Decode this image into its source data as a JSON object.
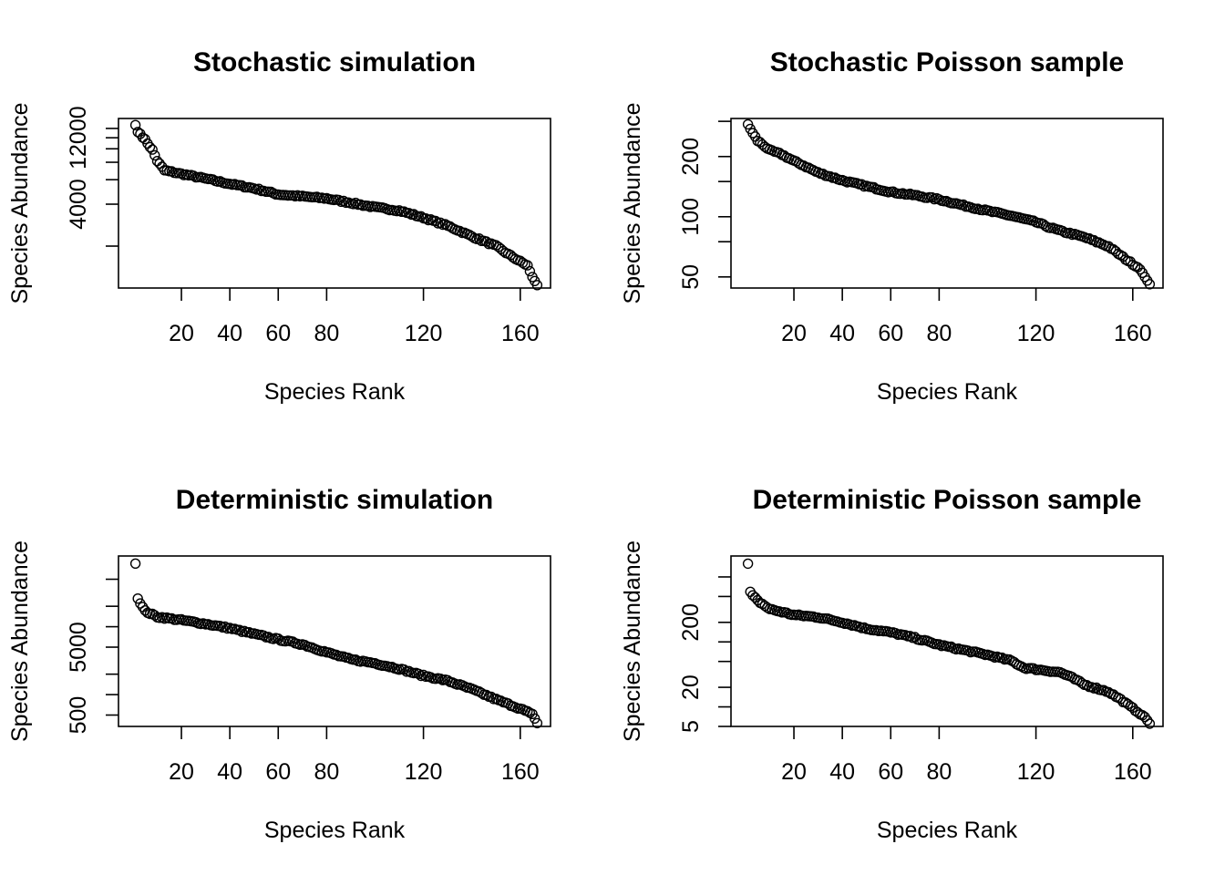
{
  "chart_data": [
    {
      "type": "scatter",
      "title": "Stochastic simulation",
      "xlabel": "Species Rank",
      "ylabel": "Species Abundance",
      "log_y": true,
      "xticks": [
        20,
        40,
        60,
        80,
        120,
        160
      ],
      "yticks": [
        2000,
        4000,
        6000,
        8000,
        10000,
        12000,
        14000
      ],
      "yticklabels": [
        "",
        "4000",
        "",
        "",
        "",
        "12000",
        ""
      ],
      "curve": [
        [
          1,
          14800
        ],
        [
          2,
          13200
        ],
        [
          3,
          12800
        ],
        [
          5,
          11600
        ],
        [
          8,
          9800
        ],
        [
          10,
          8200
        ],
        [
          13,
          7000
        ],
        [
          20,
          6600
        ],
        [
          30,
          6100
        ],
        [
          40,
          5600
        ],
        [
          50,
          5200
        ],
        [
          60,
          4700
        ],
        [
          80,
          4400
        ],
        [
          100,
          3800
        ],
        [
          110,
          3600
        ],
        [
          120,
          3200
        ],
        [
          130,
          2800
        ],
        [
          140,
          2350
        ],
        [
          150,
          2000
        ],
        [
          155,
          1750
        ],
        [
          160,
          1550
        ],
        [
          163,
          1450
        ],
        [
          165,
          1200
        ],
        [
          167,
          1050
        ]
      ]
    },
    {
      "type": "scatter",
      "title": "Stochastic Poisson sample",
      "xlabel": "Species Rank",
      "ylabel": "Species Abundance",
      "log_y": true,
      "xticks": [
        20,
        40,
        60,
        80,
        120,
        160
      ],
      "yticks": [
        50,
        75,
        100,
        150,
        200,
        300
      ],
      "yticklabels": [
        "50",
        "",
        "100",
        "",
        "200",
        ""
      ],
      "curve": [
        [
          1,
          290
        ],
        [
          2,
          275
        ],
        [
          3,
          262
        ],
        [
          5,
          240
        ],
        [
          8,
          225
        ],
        [
          10,
          215
        ],
        [
          15,
          205
        ],
        [
          20,
          190
        ],
        [
          25,
          178
        ],
        [
          30,
          166
        ],
        [
          40,
          152
        ],
        [
          50,
          142
        ],
        [
          60,
          133
        ],
        [
          70,
          128
        ],
        [
          80,
          122
        ],
        [
          90,
          114
        ],
        [
          100,
          107
        ],
        [
          110,
          101
        ],
        [
          120,
          94
        ],
        [
          125,
          89
        ],
        [
          130,
          85
        ],
        [
          140,
          79
        ],
        [
          150,
          71
        ],
        [
          155,
          64
        ],
        [
          160,
          58
        ],
        [
          163,
          55
        ],
        [
          165,
          50
        ],
        [
          167,
          46
        ]
      ]
    },
    {
      "type": "scatter",
      "title": "Deterministic simulation",
      "xlabel": "Species Rank",
      "ylabel": "Species Abundance",
      "log_y": true,
      "xticks": [
        20,
        40,
        60,
        80,
        120,
        160
      ],
      "yticks": [
        200,
        500,
        1000,
        2000,
        5000,
        10000,
        20000,
        50000
      ],
      "yticklabels": [
        "",
        "500",
        "",
        "",
        "5000",
        "",
        "",
        ""
      ],
      "curve": [
        [
          1,
          85000
        ],
        [
          2,
          26000
        ],
        [
          3,
          22000
        ],
        [
          5,
          17000
        ],
        [
          10,
          14000
        ],
        [
          20,
          12500
        ],
        [
          30,
          11000
        ],
        [
          40,
          9500
        ],
        [
          50,
          7800
        ],
        [
          60,
          6500
        ],
        [
          70,
          5500
        ],
        [
          80,
          4200
        ],
        [
          90,
          3300
        ],
        [
          100,
          2900
        ],
        [
          110,
          2400
        ],
        [
          120,
          1900
        ],
        [
          130,
          1600
        ],
        [
          140,
          1200
        ],
        [
          150,
          850
        ],
        [
          160,
          620
        ],
        [
          165,
          520
        ],
        [
          167,
          380
        ]
      ]
    },
    {
      "type": "scatter",
      "title": "Deterministic Poisson sample",
      "xlabel": "Species Rank",
      "ylabel": "Species Abundance",
      "log_y": true,
      "xticks": [
        20,
        40,
        60,
        80,
        120,
        160
      ],
      "yticks": [
        5,
        10,
        20,
        50,
        100,
        200,
        500,
        1000
      ],
      "yticklabels": [
        "5",
        "",
        "20",
        "",
        "",
        "200",
        "",
        ""
      ],
      "curve": [
        [
          1,
          1600
        ],
        [
          2,
          590
        ],
        [
          3,
          520
        ],
        [
          5,
          430
        ],
        [
          10,
          320
        ],
        [
          20,
          260
        ],
        [
          30,
          240
        ],
        [
          40,
          200
        ],
        [
          50,
          160
        ],
        [
          60,
          140
        ],
        [
          70,
          115
        ],
        [
          80,
          90
        ],
        [
          90,
          75
        ],
        [
          100,
          63
        ],
        [
          110,
          51
        ],
        [
          115,
          40
        ],
        [
          130,
          34
        ],
        [
          135,
          28
        ],
        [
          140,
          22
        ],
        [
          150,
          17
        ],
        [
          155,
          13
        ],
        [
          160,
          9.5
        ],
        [
          165,
          7
        ],
        [
          167,
          5.5
        ]
      ]
    }
  ]
}
